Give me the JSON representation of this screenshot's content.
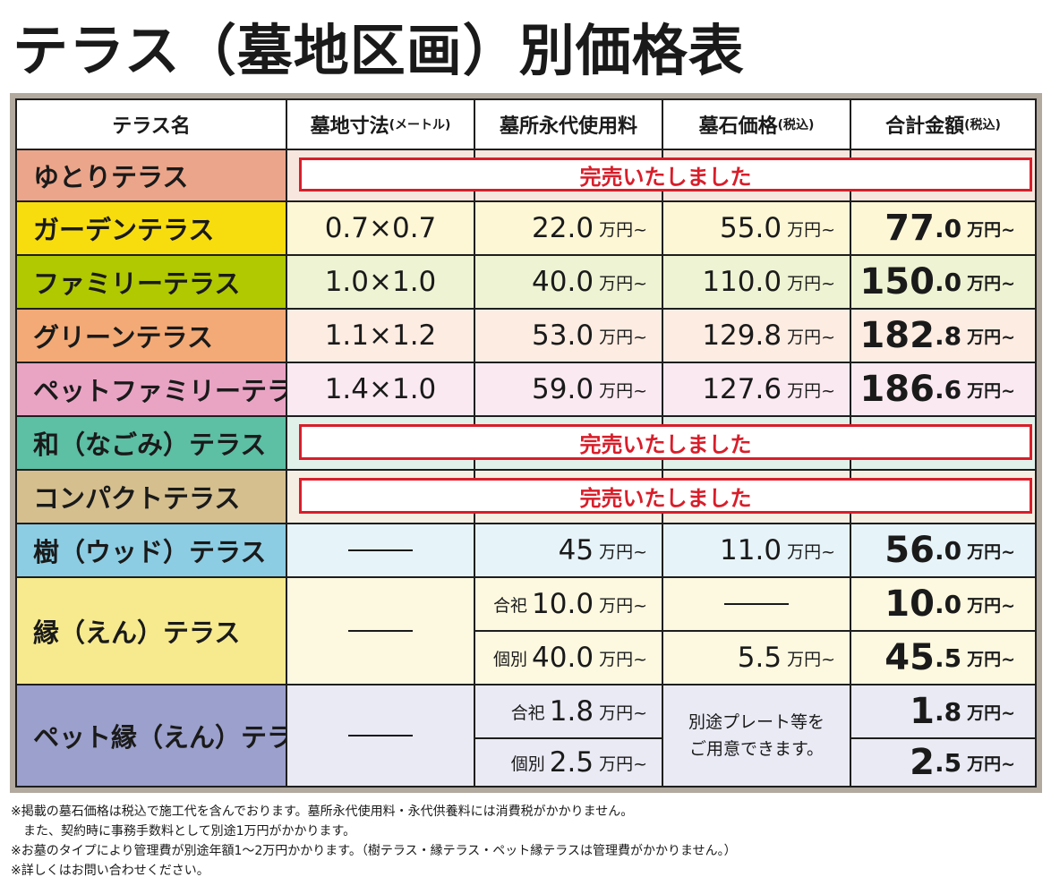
{
  "title": "テラス（墓地区画）別価格表",
  "headers": {
    "name": "テラス名",
    "size": "墓地寸法",
    "size_note": "(メートル)",
    "perpetual": "墓所永代使用料",
    "stone": "墓石価格",
    "stone_note": "(税込)",
    "total": "合計金額",
    "total_note": "(税込)"
  },
  "unit": "万円~",
  "sold_out": "完売いたしました",
  "colors": {
    "sold_out_red": "#d81e2a",
    "frame": "#b2a99f",
    "border": "#1e1e1e"
  },
  "rows": {
    "yutori": {
      "name": "ゆとりテラス"
    },
    "garden": {
      "name": "ガーデンテラス",
      "size": "0.7×0.7",
      "perpetual": "22.0",
      "stone": "55.0",
      "total_int": "77",
      "total_dec": ".0"
    },
    "family": {
      "name": "ファミリーテラス",
      "size": "1.0×1.0",
      "perpetual": "40.0",
      "stone": "110.0",
      "total_int": "150",
      "total_dec": ".0"
    },
    "green": {
      "name": "グリーンテラス",
      "size": "1.1×1.2",
      "perpetual": "53.0",
      "stone": "129.8",
      "total_int": "182",
      "total_dec": ".8"
    },
    "petfamily": {
      "name": "ペットファミリーテラス",
      "size": "1.4×1.0",
      "perpetual": "59.0",
      "stone": "127.6",
      "total_int": "186",
      "total_dec": ".6"
    },
    "nagomi": {
      "name": "和（なごみ）テラス"
    },
    "compact": {
      "name": "コンパクトテラス"
    },
    "wood": {
      "name": "樹（ウッド）テラス",
      "perpetual": "45",
      "stone": "11.0",
      "total_int": "56",
      "total_dec": ".0"
    },
    "en": {
      "name": "縁（えん）テラス",
      "joint_label": "合祀",
      "joint_perpetual": "10.0",
      "joint_total_int": "10",
      "joint_total_dec": ".0",
      "individual_label": "個別",
      "individual_perpetual": "40.0",
      "individual_stone": "5.5",
      "individual_total_int": "45",
      "individual_total_dec": ".5"
    },
    "peten": {
      "name": "ペット縁（えん）テラス",
      "joint_label": "合祀",
      "joint_perpetual": "1.8",
      "joint_total_int": "1",
      "joint_total_dec": ".8",
      "individual_label": "個別",
      "individual_perpetual": "2.5",
      "individual_total_int": "2",
      "individual_total_dec": ".5",
      "stone_note_line1": "別途プレート等を",
      "stone_note_line2": "ご用意できます。"
    }
  },
  "notes": [
    "※掲載の墓石価格は税込で施工代を含んでおります。墓所永代使用料・永代供養料には消費税がかかりません。",
    "　また、契約時に事務手数料として別途1万円がかかります。",
    "※お墓のタイプにより管理費が別途年額1～2万円かかります。（樹テラス・縁テラス・ペット縁テラスは管理費がかかりません。）",
    "※詳しくはお問い合わせください。"
  ]
}
